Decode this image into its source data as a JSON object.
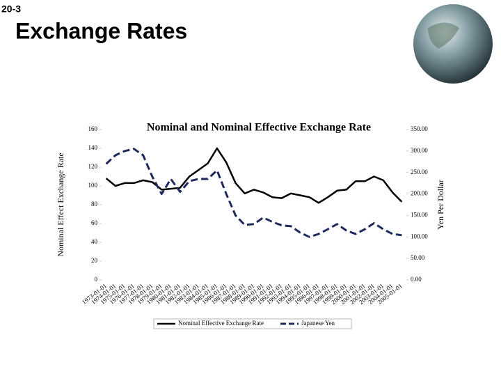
{
  "slide": {
    "number": "20-3",
    "title": "Exchange Rates"
  },
  "chart_data": {
    "type": "line",
    "title": "Nominal and Nominal Effective Exchange Rate",
    "y_label": "Nominal Effect Exchange Rate",
    "y2_label": "Yen Per Dollar",
    "categories": [
      "1973-01-01",
      "1974-01-01",
      "1975-01-01",
      "1976-01-01",
      "1977-01-01",
      "1978-01-01",
      "1979-01-01",
      "1980-01-01",
      "1981-01-01",
      "1982-01-01",
      "1983-01-01",
      "1984-01-01",
      "1985-01-01",
      "1986-01-01",
      "1987-01-01",
      "1988-01-01",
      "1989-01-01",
      "1990-01-01",
      "1991-01-01",
      "1992-01-01",
      "1993-01-01",
      "1994-01-01",
      "1995-01-01",
      "1996-01-01",
      "1997-01-01",
      "1998-01-01",
      "1999-01-01",
      "2000-01-01",
      "2001-01-01",
      "2002-01-01",
      "2003-01-01",
      "2004-01-01",
      "2005-01-01"
    ],
    "series": [
      {
        "name": "Nominal Effective Exchange Rate",
        "color": "#000000",
        "dashed": false,
        "values": [
          108,
          100,
          103,
          103,
          106,
          104,
          96,
          97,
          98,
          110,
          117,
          124,
          140,
          125,
          103,
          92,
          96,
          93,
          88,
          87,
          92,
          90,
          88,
          82,
          88,
          95,
          96,
          105,
          105,
          110,
          106,
          93,
          83
        ]
      },
      {
        "name": "Japanese Yen",
        "color": "#1f2a5c",
        "dashed": true,
        "axis": "y2",
        "values": [
          270,
          290,
          300,
          305,
          290,
          240,
          200,
          235,
          205,
          230,
          235,
          235,
          255,
          200,
          150,
          128,
          130,
          145,
          135,
          127,
          125,
          110,
          100,
          107,
          118,
          130,
          115,
          107,
          118,
          132,
          118,
          107,
          104
        ]
      }
    ],
    "ylim": [
      0,
      160
    ],
    "yticks": [
      0,
      20,
      40,
      60,
      80,
      100,
      120,
      140,
      160
    ],
    "y2lim": [
      0,
      350
    ],
    "y2ticks": [
      {
        "value": 0,
        "label": "0.00"
      },
      {
        "value": 50,
        "label": "50.00"
      },
      {
        "value": 100,
        "label": "100.00"
      },
      {
        "value": 150,
        "label": "150.00"
      },
      {
        "value": 200,
        "label": "200.00"
      },
      {
        "value": 250,
        "label": "250.00"
      },
      {
        "value": 300,
        "label": "300.00"
      },
      {
        "value": 350,
        "label": "350.00"
      }
    ],
    "legend": "bottom"
  }
}
